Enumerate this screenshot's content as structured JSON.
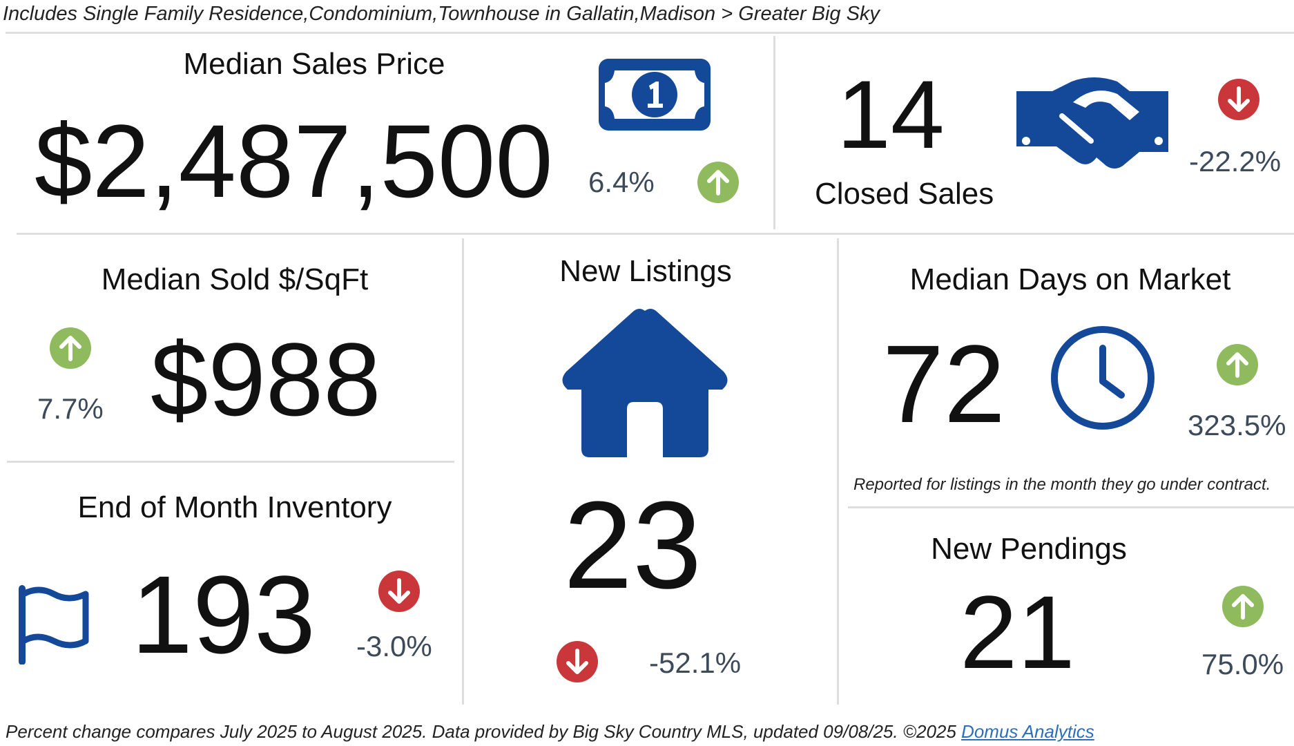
{
  "header": {
    "filter_note": "Includes Single Family Residence,Condominium,Townhouse in Gallatin,Madison > Greater Big Sky"
  },
  "colors": {
    "up": "#8fba5e",
    "down": "#c9373b",
    "icon_blue": "#14499a",
    "divider": "#dedede"
  },
  "median_sales_price": {
    "title": "Median Sales Price",
    "value": "$2,487,500",
    "change": "6.4%",
    "direction": "up",
    "icon": "money-bill-icon"
  },
  "closed_sales": {
    "title": "Closed Sales",
    "value": "14",
    "change": "-22.2%",
    "direction": "down",
    "icon": "handshake-icon"
  },
  "median_sold_sqft": {
    "title": "Median Sold $/SqFt",
    "value": "$988",
    "change": "7.7%",
    "direction": "up"
  },
  "new_listings": {
    "title": "New Listings",
    "value": "23",
    "change": "-52.1%",
    "direction": "down",
    "icon": "house-icon"
  },
  "median_days_on_market": {
    "title": "Median Days on Market",
    "value": "72",
    "change": "323.5%",
    "direction": "up",
    "note": "Reported for listings in the month they go under contract.",
    "icon": "clock-icon"
  },
  "end_of_month_inventory": {
    "title": "End of Month Inventory",
    "value": "193",
    "change": "-3.0%",
    "direction": "down",
    "icon": "flag-icon"
  },
  "new_pendings": {
    "title": "New Pendings",
    "value": "21",
    "change": "75.0%",
    "direction": "up"
  },
  "footer": {
    "text": "Percent change compares July 2025 to August 2025.  Data provided by Big Sky Country MLS, updated 09/08/25. ©2025 ",
    "link_label": "Domus Analytics"
  }
}
